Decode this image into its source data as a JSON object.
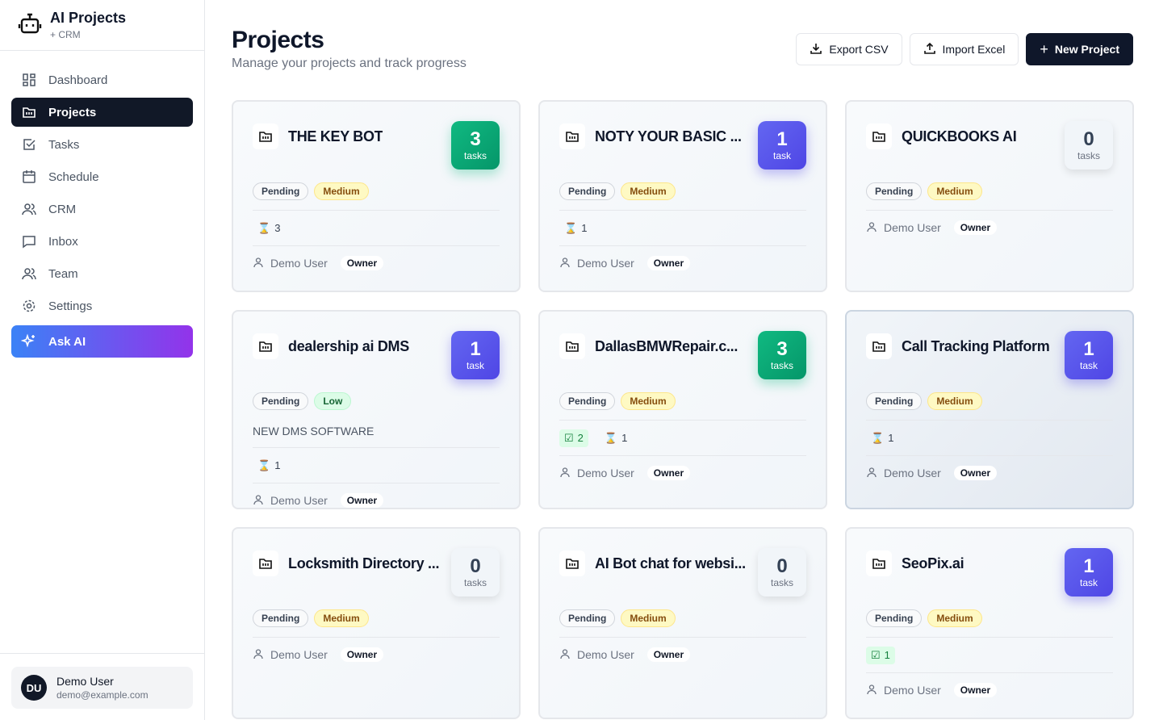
{
  "app": {
    "title": "AI Projects",
    "subtitle": "+ CRM"
  },
  "nav": [
    {
      "label": "Dashboard",
      "icon": "dashboard-icon"
    },
    {
      "label": "Projects",
      "icon": "folder-icon",
      "active": true
    },
    {
      "label": "Tasks",
      "icon": "checkbox-icon"
    },
    {
      "label": "Schedule",
      "icon": "calendar-icon"
    },
    {
      "label": "CRM",
      "icon": "users-icon"
    },
    {
      "label": "Inbox",
      "icon": "message-icon"
    },
    {
      "label": "Team",
      "icon": "users-icon"
    },
    {
      "label": "Settings",
      "icon": "gear-icon"
    }
  ],
  "ask_ai": {
    "label": "Ask AI",
    "icon": "sparkles-icon"
  },
  "user": {
    "initials": "DU",
    "name": "Demo User",
    "email": "demo@example.com"
  },
  "header": {
    "title": "Projects",
    "subtitle": "Manage your projects and track progress",
    "export": "Export CSV",
    "import": "Import Excel",
    "new": "New Project"
  },
  "colors": {
    "green": "#10b981",
    "blue": "#4f46e5",
    "dark": "#0f172a"
  },
  "projects": [
    {
      "name": "THE KEY BOT",
      "count": "3",
      "count_label": "tasks",
      "color": "green",
      "status": "Pending",
      "priority": "Medium",
      "pending": "3",
      "owner": "Demo User",
      "role": "Owner"
    },
    {
      "name": "NOTY YOUR BASIC ...",
      "count": "1",
      "count_label": "task",
      "color": "blue",
      "status": "Pending",
      "priority": "Medium",
      "pending": "1",
      "owner": "Demo User",
      "role": "Owner"
    },
    {
      "name": "QUICKBOOKS AI",
      "count": "0",
      "count_label": "tasks",
      "color": "gray",
      "status": "Pending",
      "priority": "Medium",
      "owner": "Demo User",
      "role": "Owner"
    },
    {
      "name": "dealership ai DMS",
      "count": "1",
      "count_label": "task",
      "color": "blue",
      "status": "Pending",
      "priority": "Low",
      "description": "NEW DMS SOFTWARE",
      "pending": "1",
      "owner": "Demo User",
      "role": "Owner"
    },
    {
      "name": "DallasBMWRepair.c...",
      "count": "3",
      "count_label": "tasks",
      "color": "green",
      "status": "Pending",
      "priority": "Medium",
      "done": "2",
      "pending": "1",
      "owner": "Demo User",
      "role": "Owner"
    },
    {
      "name": "Call Tracking Platform",
      "count": "1",
      "count_label": "task",
      "color": "blue",
      "status": "Pending",
      "priority": "Medium",
      "pending": "1",
      "owner": "Demo User",
      "role": "Owner",
      "highlighted": true
    },
    {
      "name": "Locksmith Directory ...",
      "count": "0",
      "count_label": "tasks",
      "color": "gray",
      "status": "Pending",
      "priority": "Medium",
      "owner": "Demo User",
      "role": "Owner"
    },
    {
      "name": "AI Bot chat for websi...",
      "count": "0",
      "count_label": "tasks",
      "color": "gray",
      "status": "Pending",
      "priority": "Medium",
      "owner": "Demo User",
      "role": "Owner"
    },
    {
      "name": "SeoPix.ai",
      "count": "1",
      "count_label": "task",
      "color": "blue",
      "status": "Pending",
      "priority": "Medium",
      "done": "1",
      "owner": "Demo User",
      "role": "Owner"
    }
  ]
}
